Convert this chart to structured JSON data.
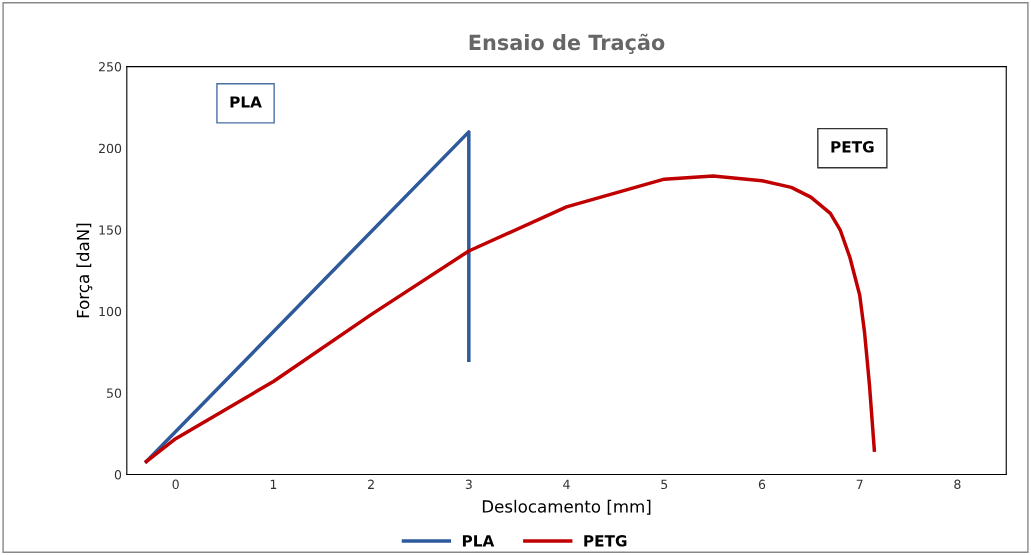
{
  "chart_data": {
    "type": "line",
    "title": "Ensaio de Tração",
    "xlabel": "Deslocamento [mm]",
    "ylabel": "Força [daN]",
    "xlim": [
      -0.5,
      8.5
    ],
    "xticks": [
      0,
      1,
      2,
      3,
      4,
      5,
      6,
      7,
      8
    ],
    "ylim": [
      0,
      250
    ],
    "yticks": [
      0,
      50,
      100,
      150,
      200,
      250
    ],
    "grid": false,
    "legend": "bottom",
    "marker": "none",
    "line_style": "solid",
    "annotations": [
      "PLA",
      "PETG"
    ],
    "series": [
      {
        "name": "PLA",
        "color": "#2e5a9c",
        "x": [
          -0.3,
          3.0,
          3.0
        ],
        "values": [
          8,
          210,
          70
        ]
      },
      {
        "name": "PETG",
        "color": "#c00000",
        "x": [
          -0.3,
          0,
          1,
          2,
          3,
          4,
          5,
          5.5,
          6,
          6.3,
          6.5,
          6.7,
          6.8,
          6.9,
          7.0,
          7.05,
          7.1,
          7.15
        ],
        "values": [
          8,
          22,
          57,
          98,
          137,
          164,
          181,
          183,
          180,
          176,
          170,
          160,
          150,
          133,
          110,
          87,
          55,
          15
        ]
      }
    ]
  }
}
